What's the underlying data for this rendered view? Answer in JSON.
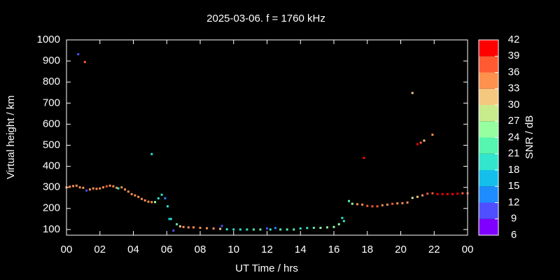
{
  "chart_data": {
    "type": "scatter",
    "title": "2025-03-06. f = 1760 kHz",
    "x_label": "UT Time / hrs",
    "y_label": "Virtual height / km",
    "colorbar_label": "SNR / dB",
    "xlim": [
      0,
      24
    ],
    "xticks": [
      {
        "value": 0,
        "label": "00"
      },
      {
        "value": 2,
        "label": "02"
      },
      {
        "value": 4,
        "label": "04"
      },
      {
        "value": 6,
        "label": "06"
      },
      {
        "value": 8,
        "label": "08"
      },
      10,
      12,
      14,
      16,
      18,
      20,
      22,
      {
        "value": 24,
        "label": "00"
      }
    ],
    "ylim": [
      73,
      1000
    ],
    "yticks": [
      100,
      200,
      300,
      400,
      500,
      600,
      700,
      800,
      900,
      1000
    ],
    "clim": [
      6,
      42
    ],
    "cticks": [
      6,
      9,
      12,
      15,
      18,
      21,
      24,
      27,
      30,
      33,
      36,
      39,
      42
    ],
    "colors": [
      "#8000ff",
      "#4f4fff",
      "#1e8cff",
      "#14c0eb",
      "#32e6cd",
      "#56f5b0",
      "#96ffa0",
      "#c8eb8c",
      "#f5c880",
      "#ff914f",
      "#ff5a32",
      "#ff0000"
    ],
    "x": [
      0.0,
      0.2,
      0.4,
      0.6,
      0.8,
      1.0,
      1.2,
      1.4,
      1.6,
      1.8,
      2.0,
      2.2,
      2.4,
      2.6,
      2.8,
      3.0,
      3.1,
      3.3,
      3.5,
      3.7,
      3.9,
      4.1,
      4.3,
      4.5,
      4.7,
      4.9,
      5.1,
      5.3,
      5.5,
      5.7,
      5.9,
      6.05,
      6.15,
      6.25,
      6.4,
      6.6,
      6.8,
      7.0,
      7.3,
      7.6,
      8.0,
      8.4,
      8.8,
      9.2,
      9.3,
      9.6,
      10.0,
      10.4,
      10.8,
      11.2,
      11.6,
      12.0,
      12.2,
      12.5,
      12.8,
      13.2,
      13.6,
      14.0,
      14.4,
      14.8,
      15.2,
      15.6,
      16.0,
      16.3,
      16.5,
      16.6,
      16.9,
      17.1,
      17.4,
      17.7,
      18.0,
      18.3,
      18.6,
      18.9,
      19.2,
      19.5,
      19.8,
      20.1,
      20.4,
      20.7,
      21.0,
      21.3,
      21.6,
      21.9,
      22.2,
      22.5,
      22.8,
      23.1,
      23.4,
      23.7,
      24.0,
      0.7,
      1.1,
      5.1,
      17.8,
      20.7,
      21.0,
      21.2,
      21.4,
      21.9
    ],
    "y": [
      300,
      303,
      306,
      308,
      300,
      298,
      285,
      290,
      295,
      293,
      295,
      300,
      305,
      308,
      305,
      298,
      295,
      300,
      290,
      280,
      268,
      262,
      255,
      245,
      238,
      232,
      230,
      230,
      248,
      265,
      248,
      210,
      150,
      150,
      95,
      125,
      115,
      112,
      110,
      110,
      108,
      106,
      105,
      103,
      117,
      101,
      100,
      100,
      100,
      100,
      100,
      105,
      100,
      107,
      100,
      100,
      100,
      105,
      107,
      108,
      108,
      110,
      112,
      125,
      155,
      140,
      235,
      222,
      220,
      218,
      212,
      210,
      210,
      215,
      218,
      222,
      224,
      225,
      228,
      250,
      255,
      262,
      270,
      272,
      268,
      268,
      268,
      268,
      270,
      272,
      272,
      932,
      895,
      458,
      440,
      748,
      505,
      512,
      522,
      550
    ],
    "snr": [
      34,
      34,
      35,
      35,
      34,
      35,
      11,
      34,
      35,
      34,
      35,
      34,
      36,
      35,
      34,
      33,
      19,
      34,
      35,
      34,
      35,
      34,
      35,
      34,
      35,
      34,
      35,
      25,
      19,
      20,
      12,
      20,
      17,
      19,
      11,
      22,
      31,
      34,
      34,
      35,
      34,
      34,
      33,
      31,
      10,
      19,
      20,
      18,
      20,
      22,
      23,
      11,
      19,
      12,
      21,
      21,
      23,
      18,
      19,
      23,
      24,
      25,
      24,
      26,
      20,
      19,
      22,
      25,
      34,
      35,
      36,
      37,
      36,
      35,
      34,
      36,
      35,
      34,
      33,
      29,
      31,
      35,
      36,
      37,
      40,
      41,
      40,
      39,
      40,
      38,
      37,
      11,
      38,
      19,
      40,
      32,
      40,
      37,
      31,
      35
    ]
  }
}
